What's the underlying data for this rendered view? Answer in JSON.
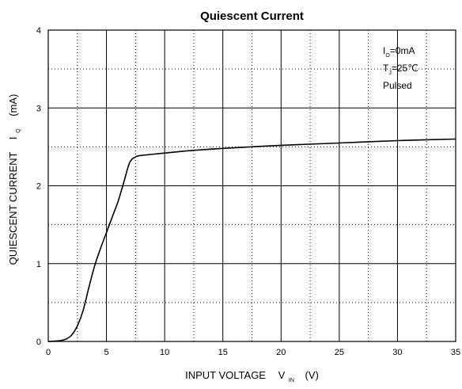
{
  "chart_data": {
    "type": "line",
    "title": "Quiescent Current",
    "xlabel": {
      "prefix": "INPUT VOLTAGE",
      "symbol": "V",
      "subscript": "IN",
      "unit": "(V)"
    },
    "ylabel": {
      "prefix": "QUIESCENT CURRENT",
      "symbol": "I",
      "subscript": "Q",
      "unit": "(mA)"
    },
    "xlim": [
      0,
      35
    ],
    "ylim": [
      0,
      4
    ],
    "xticks": [
      "0",
      "5",
      "10",
      "15",
      "20",
      "25",
      "30",
      "35"
    ],
    "yticks": [
      "0",
      "1",
      "2",
      "3",
      "4"
    ],
    "grid": "solid major, dotted minor",
    "annotations": [
      {
        "symbol": "I",
        "subscript": "O",
        "text": "=0mA"
      },
      {
        "symbol": "T",
        "subscript": "J",
        "text": "=25℃"
      },
      {
        "symbol": "",
        "subscript": "",
        "text": "Pulsed"
      }
    ],
    "series": [
      {
        "x": [
          0,
          1.0,
          1.5,
          2.0,
          2.5,
          3.0,
          3.5,
          4.0,
          4.5,
          5.0,
          5.5,
          6.0,
          6.5,
          7.0,
          7.5,
          8.0,
          10,
          12,
          15,
          20,
          25,
          30,
          35
        ],
        "y": [
          0,
          0.01,
          0.03,
          0.08,
          0.2,
          0.4,
          0.7,
          0.98,
          1.2,
          1.4,
          1.6,
          1.8,
          2.05,
          2.3,
          2.37,
          2.39,
          2.42,
          2.45,
          2.48,
          2.52,
          2.55,
          2.58,
          2.6
        ]
      }
    ]
  }
}
